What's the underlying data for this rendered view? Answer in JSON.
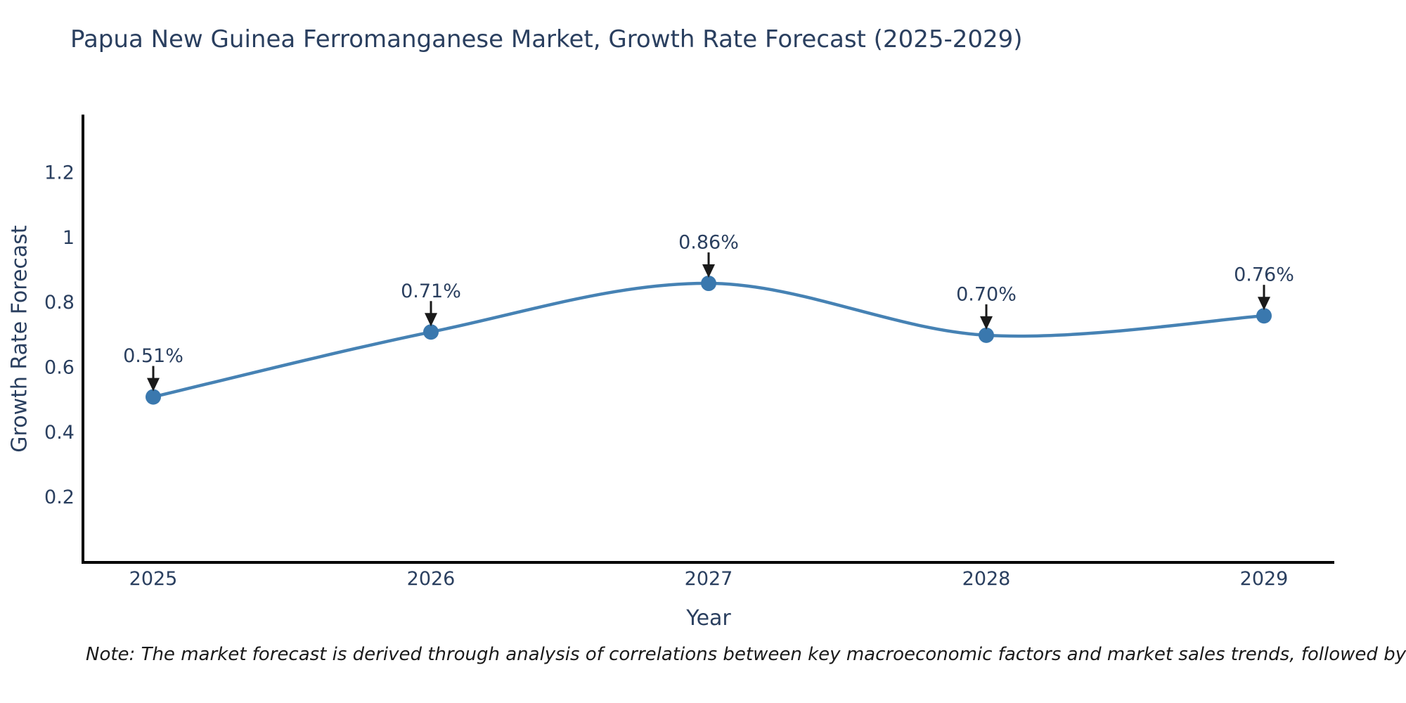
{
  "title": "Papua New Guinea Ferromanganese Market, Growth Rate Forecast (2025-2029)",
  "note": "Note: The market forecast is derived through analysis of correlations between key macroeconomic factors and market sales trends, followed by predictive modeling to project future sales",
  "chart_data": {
    "type": "line",
    "line_shape": "spline",
    "title": "Papua New Guinea Ferromanganese Market, Growth Rate Forecast (2025-2029)",
    "xlabel": "Year",
    "ylabel": "Growth Rate Forecast",
    "x": [
      2025,
      2026,
      2027,
      2028,
      2029
    ],
    "series": [
      {
        "name": "Growth Rate Forecast",
        "values": [
          0.51,
          0.71,
          0.86,
          0.7,
          0.76
        ]
      }
    ],
    "point_labels": [
      "0.51%",
      "0.71%",
      "0.86%",
      "0.70%",
      "0.76%"
    ],
    "xtick_labels": [
      "2025",
      "2026",
      "2027",
      "2028",
      "2029"
    ],
    "ytick_labels": [
      "0.2",
      "0.4",
      "0.6",
      "0.8",
      "1",
      "1.2"
    ],
    "yticks": [
      0.2,
      0.4,
      0.6,
      0.8,
      1.0,
      1.2
    ],
    "ylim": [
      0,
      1.38
    ],
    "grid": false,
    "legend": "none",
    "colors": {
      "line": "#4682b4",
      "marker": "#3a78ae",
      "axis": "#000000",
      "text": "#2a3f5f",
      "arrow": "#1a1a1a",
      "background": "#ffffff"
    }
  }
}
